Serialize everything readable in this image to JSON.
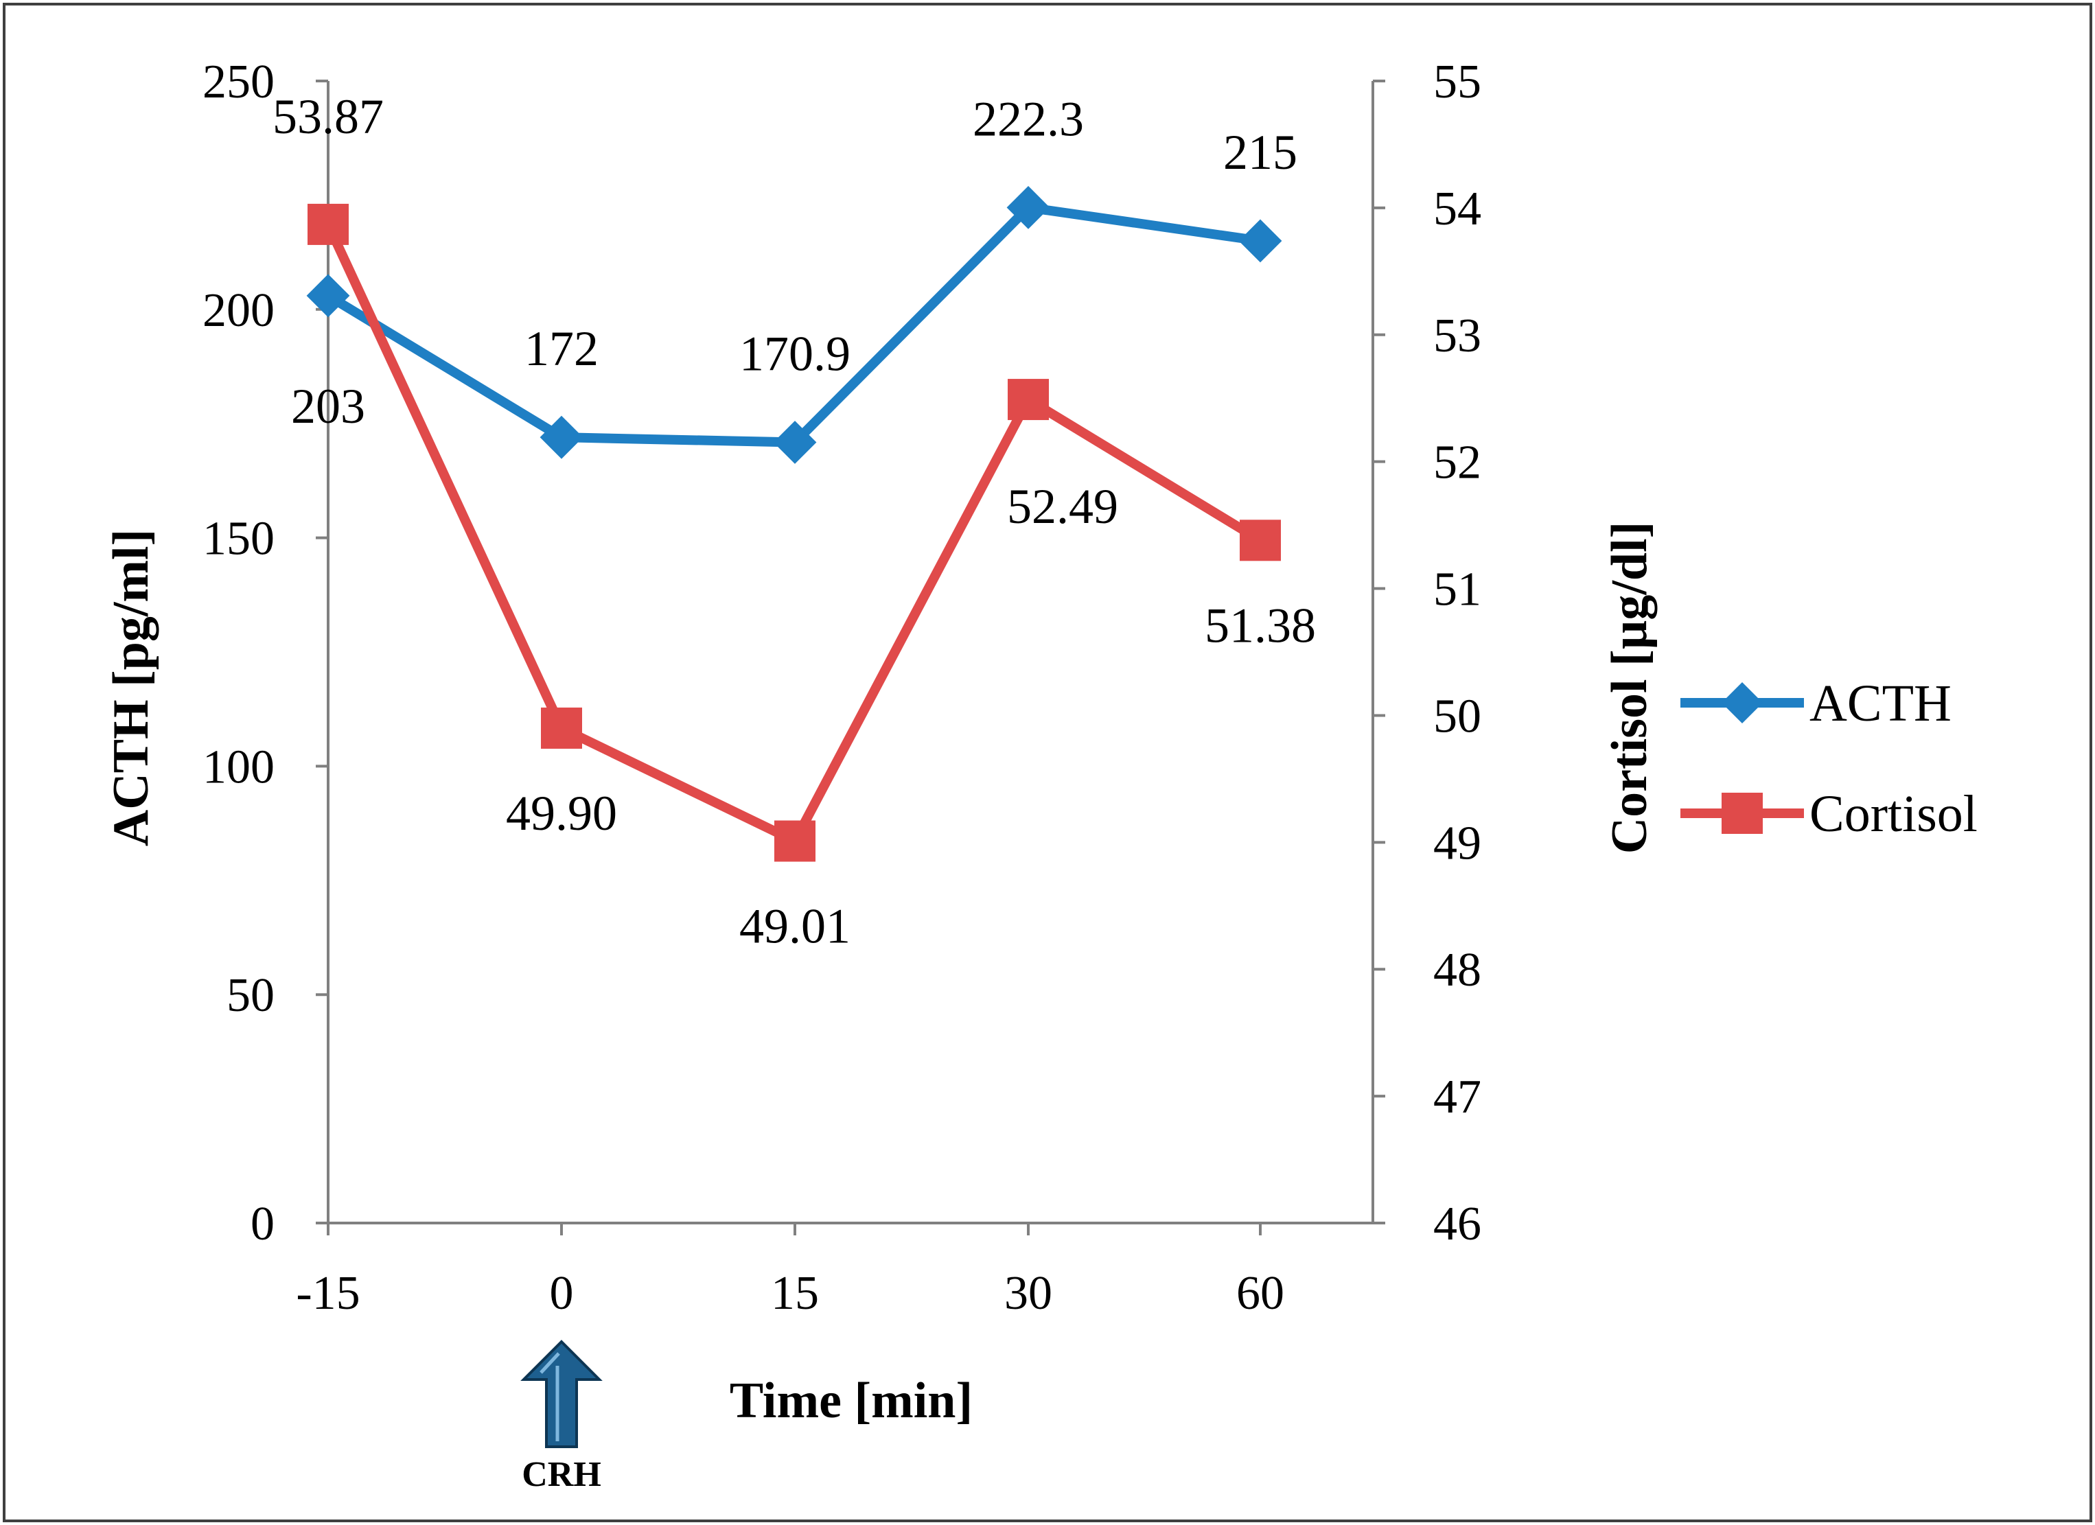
{
  "chart_data": {
    "type": "line",
    "categories": [
      "-15",
      "0",
      "15",
      "30",
      "60"
    ],
    "series": [
      {
        "name": "ACTH",
        "axis": "left",
        "color": "#1f7fc4",
        "marker": "diamond",
        "values": [
          203,
          172,
          170.9,
          222.3,
          215
        ],
        "labels": [
          "203",
          "172",
          "170.9",
          "222.3",
          "215"
        ]
      },
      {
        "name": "Cortisol",
        "axis": "right",
        "color": "#e04a4a",
        "marker": "square",
        "values": [
          53.87,
          49.9,
          49.01,
          52.49,
          51.38
        ],
        "labels": [
          "53.87",
          "49.90",
          "49.01",
          "52.49",
          "51.38"
        ]
      }
    ],
    "xlabel": "Time [min]",
    "ylabel": "ACTH [pg/ml]",
    "y2label": "Cortisol [µg/dl]",
    "ylim": [
      0,
      250
    ],
    "yticks": [
      0,
      50,
      100,
      150,
      200,
      250
    ],
    "y2lim": [
      46,
      55
    ],
    "y2ticks": [
      46,
      47,
      48,
      49,
      50,
      51,
      52,
      53,
      54,
      55
    ],
    "grid": false,
    "legend": "right",
    "annotation": {
      "text": "CRH",
      "at_category": "0",
      "arrow": "up",
      "color": "#1d5f8f"
    }
  }
}
